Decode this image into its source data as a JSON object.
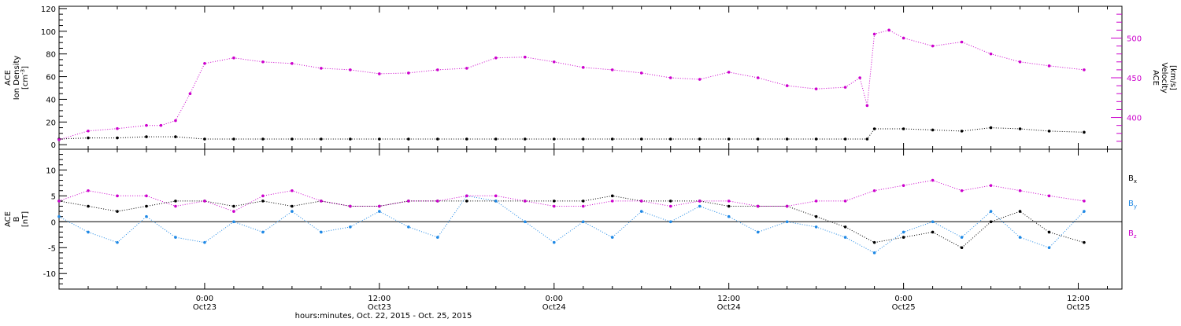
{
  "colors": {
    "axis": "#000000",
    "bx": "#000000",
    "by": "#1e88e5",
    "bz": "#cc00cc",
    "density": "#000000",
    "velocity": "#cc00cc"
  },
  "xaxis": {
    "title": "hours:minutes, Oct. 22, 2015 - Oct. 25, 2015",
    "range_hours": [
      14,
      87
    ],
    "major_ticks": [
      {
        "hour": 24,
        "time": "0:00",
        "date": "Oct23"
      },
      {
        "hour": 36,
        "time": "12:00",
        "date": "Oct23"
      },
      {
        "hour": 48,
        "time": "0:00",
        "date": "Oct24"
      },
      {
        "hour": 60,
        "time": "12:00",
        "date": "Oct24"
      },
      {
        "hour": 72,
        "time": "0:00",
        "date": "Oct25"
      },
      {
        "hour": 84,
        "time": "12:00",
        "date": "Oct25"
      }
    ]
  },
  "top_panel": {
    "left_axis": {
      "label_line1": "ACE",
      "label_line2": "Ion Density",
      "label_unit": "[cm",
      "label_unit_sup": "-3",
      "label_unit_end": "]",
      "ticks": [
        "0",
        "20",
        "40",
        "60",
        "80",
        "100",
        "120"
      ]
    },
    "right_axis": {
      "label_line1": "ACE",
      "label_line2": "Velocity",
      "label_unit": "[km/s]",
      "ticks": [
        "400",
        "450",
        "500"
      ]
    }
  },
  "bottom_panel": {
    "left_axis": {
      "label_line1": "ACE",
      "label_line2": "B",
      "label_unit": "[nT]",
      "ticks": [
        "-10",
        "-5",
        "0",
        "5",
        "10"
      ]
    },
    "legend": [
      {
        "base": "B",
        "sub": "x",
        "color_key": "bx"
      },
      {
        "base": "B",
        "sub": "y",
        "color_key": "by"
      },
      {
        "base": "B",
        "sub": "z",
        "color_key": "bz"
      }
    ]
  },
  "chart_data": [
    {
      "type": "scatter",
      "ylim": [
        -4,
        122
      ],
      "y2lim": [
        360,
        540
      ],
      "series": [
        {
          "key": "density",
          "axis": "left",
          "x": [
            14,
            16,
            18,
            20,
            22,
            24,
            26,
            28,
            30,
            32,
            34,
            36,
            38,
            40,
            42,
            44,
            46,
            48,
            50,
            52,
            54,
            56,
            58,
            60,
            62,
            64,
            66,
            68,
            69.5,
            70,
            72,
            74,
            76,
            78,
            80,
            82,
            84.4
          ],
          "y": [
            5,
            6,
            6,
            7,
            7,
            5,
            5,
            5,
            5,
            5,
            5,
            5,
            5,
            5,
            5,
            5,
            5,
            5,
            5,
            5,
            5,
            5,
            5,
            5,
            5,
            5,
            5,
            5,
            5,
            14,
            14,
            13,
            12,
            15,
            14,
            12,
            11
          ]
        },
        {
          "key": "velocity",
          "axis": "right",
          "x": [
            14,
            16,
            18,
            20,
            21,
            22,
            23,
            24,
            26,
            28,
            30,
            32,
            34,
            36,
            38,
            40,
            42,
            44,
            46,
            48,
            50,
            52,
            54,
            56,
            58,
            60,
            62,
            64,
            66,
            68,
            69,
            69.5,
            70,
            71,
            72,
            74,
            76,
            78,
            80,
            82,
            84.4
          ],
          "y": [
            372,
            383,
            386,
            390,
            390,
            396,
            430,
            468,
            475,
            470,
            468,
            462,
            460,
            455,
            456,
            460,
            462,
            475,
            476,
            470,
            463,
            460,
            456,
            450,
            448,
            457,
            450,
            440,
            436,
            438,
            450,
            415,
            505,
            510,
            500,
            490,
            495,
            480,
            470,
            465,
            460
          ]
        }
      ]
    },
    {
      "type": "scatter",
      "ylim": [
        -13,
        14
      ],
      "series": [
        {
          "key": "bx",
          "x": [
            14,
            16,
            18,
            20,
            22,
            24,
            26,
            28,
            30,
            32,
            34,
            36,
            38,
            40,
            42,
            44,
            46,
            48,
            50,
            52,
            54,
            56,
            58,
            60,
            62,
            64,
            66,
            68,
            70,
            72,
            74,
            76,
            78,
            80,
            82,
            84.4
          ],
          "y": [
            4,
            3,
            2,
            3,
            4,
            4,
            3,
            4,
            3,
            4,
            3,
            3,
            4,
            4,
            4,
            4,
            4,
            4,
            4,
            5,
            4,
            4,
            4,
            3,
            3,
            3,
            1,
            -1,
            -4,
            -3,
            -2,
            -5,
            0,
            2,
            -2,
            -4
          ]
        },
        {
          "key": "by",
          "x": [
            14,
            16,
            18,
            20,
            22,
            24,
            26,
            28,
            30,
            32,
            34,
            36,
            38,
            40,
            42,
            44,
            46,
            48,
            50,
            52,
            54,
            56,
            58,
            60,
            62,
            64,
            66,
            68,
            70,
            72,
            74,
            76,
            78,
            80,
            82,
            84.4
          ],
          "y": [
            1,
            -2,
            -4,
            1,
            -3,
            -4,
            0,
            -2,
            2,
            -2,
            -1,
            2,
            -1,
            -3,
            5,
            4,
            0,
            -4,
            0,
            -3,
            2,
            0,
            3,
            1,
            -2,
            0,
            -1,
            -3,
            -6,
            -2,
            0,
            -3,
            2,
            -3,
            -5,
            2
          ]
        },
        {
          "key": "bz",
          "x": [
            14,
            16,
            18,
            20,
            22,
            24,
            26,
            28,
            30,
            32,
            34,
            36,
            38,
            40,
            42,
            44,
            46,
            48,
            50,
            52,
            54,
            56,
            58,
            60,
            62,
            64,
            66,
            68,
            70,
            72,
            74,
            76,
            78,
            80,
            82,
            84.4
          ],
          "y": [
            4,
            6,
            5,
            5,
            3,
            4,
            2,
            5,
            6,
            4,
            3,
            3,
            4,
            4,
            5,
            5,
            4,
            3,
            3,
            4,
            4,
            3,
            4,
            4,
            3,
            3,
            4,
            4,
            6,
            7,
            8,
            6,
            7,
            6,
            5,
            4
          ]
        }
      ]
    }
  ]
}
